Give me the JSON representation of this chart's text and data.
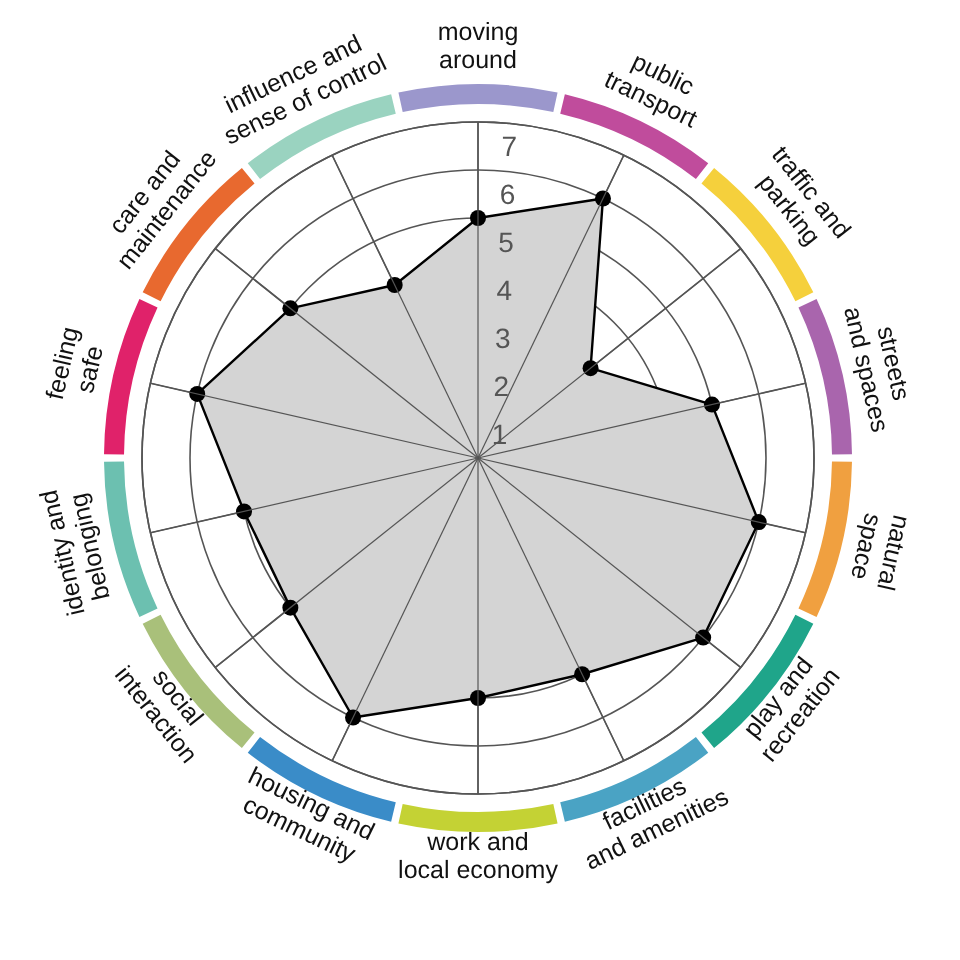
{
  "chart_data": {
    "type": "radar",
    "categories": [
      "moving\naround",
      "public\ntransport",
      "traffic and\nparking",
      "streets\nand spaces",
      "natural\nspace",
      "play and\nrecreation",
      "facilities\nand amenities",
      "work and\nlocal economy",
      "housing and\ncommunity",
      "social\ninteraction",
      "identity and\nbelonging",
      "feeling\nsafe",
      "care and\nmaintenance",
      "influence and\nsense of control"
    ],
    "series": [
      {
        "color": "#d4d4d4",
        "values": [
          5,
          6,
          3,
          5,
          6,
          6,
          5,
          5,
          6,
          5,
          5,
          6,
          5,
          4
        ]
      }
    ],
    "ylim": [
      0,
      7
    ],
    "yticks": [
      1,
      2,
      3,
      4,
      5,
      6,
      7
    ],
    "grid": true,
    "marker": "circle"
  }
}
